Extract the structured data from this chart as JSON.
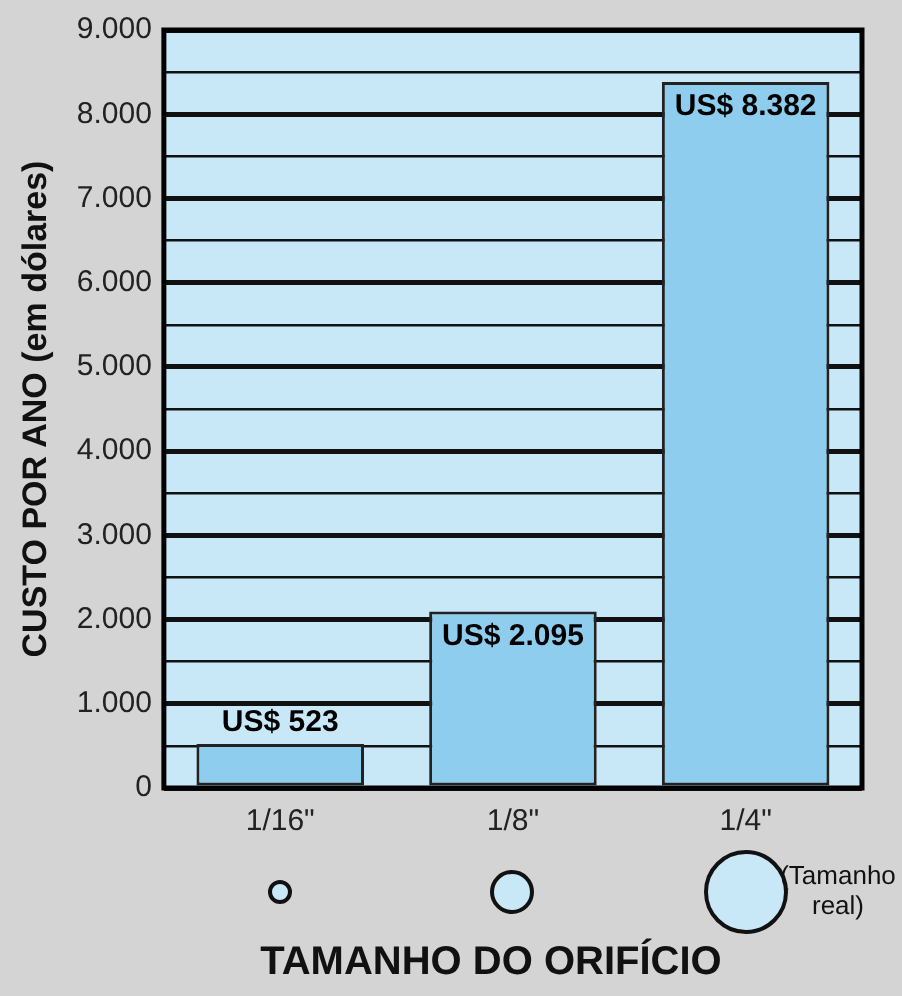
{
  "chart_data": {
    "type": "bar",
    "xlabel": "TAMANHO DO ORIFÍCIO",
    "ylabel": "CUSTO POR ANO (em dólares)",
    "categories": [
      "1/16\"",
      "1/8\"",
      "1/4\""
    ],
    "values": [
      523,
      2095,
      8382
    ],
    "color": "#8ecdee",
    "value_labels": [
      "US$ 523",
      "US$ 2.095",
      "US$ 8.382"
    ],
    "ylim": [
      0,
      9000
    ],
    "yticks": [
      {
        "value": 0,
        "label": "0"
      },
      {
        "value": 500,
        "label": null
      },
      {
        "value": 1000,
        "label": "1.000"
      },
      {
        "value": 1500,
        "label": null
      },
      {
        "value": 2000,
        "label": "2.000"
      },
      {
        "value": 2500,
        "label": null
      },
      {
        "value": 3000,
        "label": "3.000"
      },
      {
        "value": 3500,
        "label": null
      },
      {
        "value": 4000,
        "label": "4.000"
      },
      {
        "value": 4500,
        "label": null
      },
      {
        "value": 5000,
        "label": "5.000"
      },
      {
        "value": 5500,
        "label": null
      },
      {
        "value": 6000,
        "label": "6.000"
      },
      {
        "value": 6500,
        "label": null
      },
      {
        "value": 7000,
        "label": "7.000"
      },
      {
        "value": 7500,
        "label": null
      },
      {
        "value": 8000,
        "label": "8.000"
      },
      {
        "value": 8500,
        "label": null
      },
      {
        "value": 9000,
        "label": "9.000"
      }
    ],
    "grid": "y",
    "annotations": [
      "(Tamanho real)"
    ]
  }
}
